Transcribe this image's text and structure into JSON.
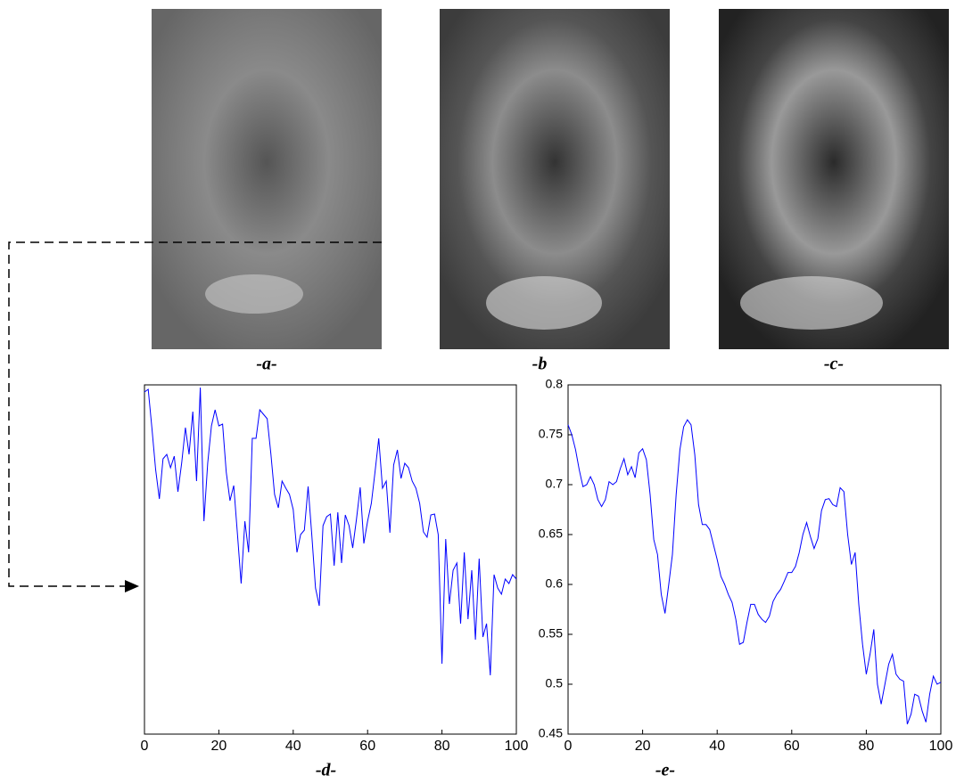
{
  "image_captions": [
    "-a-",
    "-b",
    "-c-"
  ],
  "chart_data": [
    {
      "type": "line",
      "caption": "-d-",
      "x": [
        0,
        1,
        2,
        3,
        4,
        5,
        6,
        7,
        8,
        9,
        10,
        11,
        12,
        13,
        14,
        15,
        16,
        17,
        18,
        19,
        20,
        21,
        22,
        23,
        24,
        25,
        26,
        27,
        28,
        29,
        30,
        31,
        32,
        33,
        34,
        35,
        36,
        37,
        38,
        39,
        40,
        41,
        42,
        43,
        44,
        45,
        46,
        47,
        48,
        49,
        50,
        51,
        52,
        53,
        54,
        55,
        56,
        57,
        58,
        59,
        60,
        61,
        62,
        63,
        64,
        65,
        66,
        67,
        68,
        69,
        70,
        71,
        72,
        73,
        74,
        75,
        76,
        77,
        78,
        79,
        80,
        81,
        82,
        83,
        84,
        85,
        86,
        87,
        88,
        89,
        90,
        91,
        92,
        93,
        94,
        95,
        96,
        97,
        98,
        99,
        100
      ],
      "series": [
        {
          "color": "#0000ff",
          "values": [
            384,
            387,
            344,
            297,
            264,
            309,
            314,
            299,
            312,
            272,
            304,
            344,
            314,
            362,
            284,
            389,
            239,
            304,
            346,
            364,
            346,
            348,
            294,
            262,
            279,
            224,
            169,
            239,
            204,
            332,
            332,
            364,
            359,
            354,
            314,
            269,
            254,
            284,
            276,
            269,
            252,
            204,
            224,
            229,
            278,
            224,
            164,
            144,
            234,
            244,
            247,
            189,
            249,
            192,
            246,
            234,
            209,
            241,
            277,
            214,
            239,
            259,
            294,
            332,
            276,
            284,
            226,
            302,
            319,
            287,
            304,
            299,
            284,
            276,
            259,
            227,
            221,
            246,
            247,
            224,
            79,
            219,
            146,
            184,
            192,
            124,
            204,
            129,
            184,
            106,
            197,
            109,
            124,
            66,
            179,
            164,
            157,
            174,
            169,
            179,
            174
          ]
        }
      ],
      "xlim": [
        0,
        100
      ],
      "ylim": [
        0,
        392
      ],
      "xticks": [
        0,
        20,
        40,
        60,
        80,
        100
      ]
    },
    {
      "type": "line",
      "caption": "-e-",
      "x": [
        0,
        1,
        2,
        3,
        4,
        5,
        6,
        7,
        8,
        9,
        10,
        11,
        12,
        13,
        14,
        15,
        16,
        17,
        18,
        19,
        20,
        21,
        22,
        23,
        24,
        25,
        26,
        27,
        28,
        29,
        30,
        31,
        32,
        33,
        34,
        35,
        36,
        37,
        38,
        39,
        40,
        41,
        42,
        43,
        44,
        45,
        46,
        47,
        48,
        49,
        50,
        51,
        52,
        53,
        54,
        55,
        56,
        57,
        58,
        59,
        60,
        61,
        62,
        63,
        64,
        65,
        66,
        67,
        68,
        69,
        70,
        71,
        72,
        73,
        74,
        75,
        76,
        77,
        78,
        79,
        80,
        81,
        82,
        83,
        84,
        85,
        86,
        87,
        88,
        89,
        90,
        91,
        92,
        93,
        94,
        95,
        96,
        97,
        98,
        99,
        100
      ],
      "series": [
        {
          "color": "#0000ff",
          "values": [
            0.76,
            0.75,
            0.735,
            0.715,
            0.698,
            0.7,
            0.708,
            0.7,
            0.685,
            0.678,
            0.685,
            0.703,
            0.7,
            0.703,
            0.716,
            0.726,
            0.71,
            0.718,
            0.707,
            0.732,
            0.736,
            0.725,
            0.69,
            0.645,
            0.63,
            0.59,
            0.571,
            0.6,
            0.63,
            0.69,
            0.735,
            0.758,
            0.765,
            0.76,
            0.73,
            0.68,
            0.66,
            0.66,
            0.655,
            0.64,
            0.625,
            0.608,
            0.6,
            0.59,
            0.582,
            0.565,
            0.54,
            0.542,
            0.562,
            0.58,
            0.58,
            0.57,
            0.565,
            0.562,
            0.568,
            0.583,
            0.59,
            0.595,
            0.603,
            0.612,
            0.612,
            0.618,
            0.632,
            0.65,
            0.662,
            0.648,
            0.636,
            0.646,
            0.674,
            0.685,
            0.686,
            0.68,
            0.678,
            0.697,
            0.693,
            0.65,
            0.62,
            0.632,
            0.58,
            0.54,
            0.51,
            0.53,
            0.555,
            0.5,
            0.48,
            0.5,
            0.52,
            0.53,
            0.51,
            0.505,
            0.503,
            0.46,
            0.47,
            0.49,
            0.488,
            0.473,
            0.462,
            0.49,
            0.508,
            0.5,
            0.502
          ]
        }
      ],
      "xlim": [
        0,
        100
      ],
      "ylim": [
        0.45,
        0.8
      ],
      "xticks": [
        0,
        20,
        40,
        60,
        80,
        100
      ],
      "yticks": [
        0.45,
        0.5,
        0.55,
        0.6,
        0.65,
        0.7,
        0.75,
        0.8
      ]
    }
  ]
}
